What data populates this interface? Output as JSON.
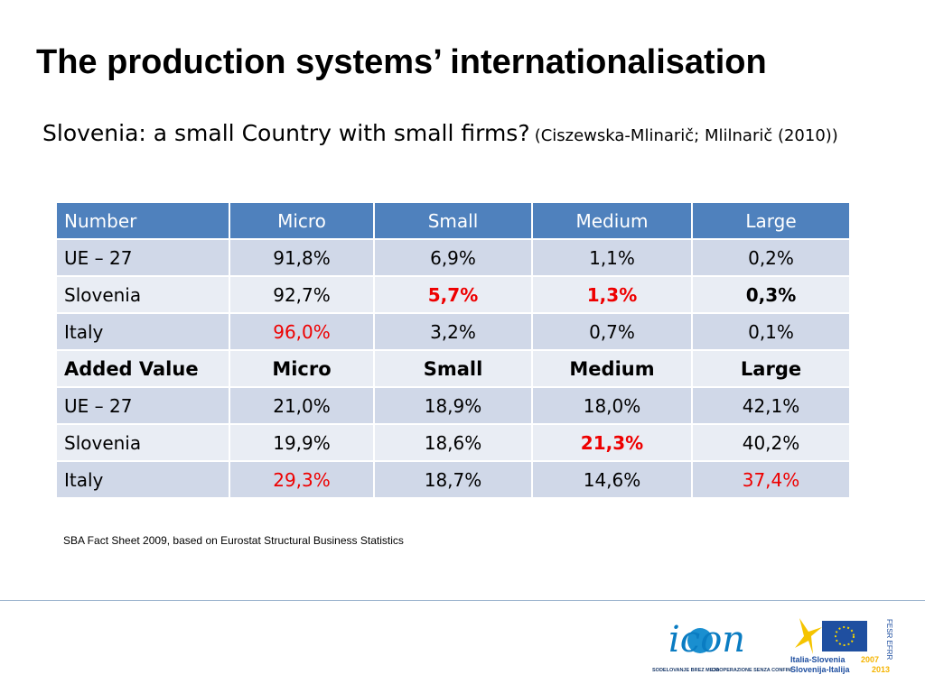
{
  "title": "The production systems’ internationalisation",
  "subtitle": {
    "main": "Slovenia: a small Country with small firms?",
    "citation": "(Ciszewska-Mlinarič; Mlilnarič (2010))"
  },
  "table": {
    "header": [
      "Number",
      "Micro",
      "Small",
      "Medium",
      "Large"
    ],
    "rows": [
      {
        "kind": "data",
        "cells": [
          {
            "text": "UE – 27"
          },
          {
            "text": "91,8%"
          },
          {
            "text": "6,9%"
          },
          {
            "text": "1,1%"
          },
          {
            "text": "0,2%"
          }
        ]
      },
      {
        "kind": "data",
        "cells": [
          {
            "text": "Slovenia"
          },
          {
            "text": "92,7%"
          },
          {
            "text": "5,7%",
            "style": "red-bold"
          },
          {
            "text": "1,3%",
            "style": "red-bold"
          },
          {
            "text": "0,3%",
            "style": "bold"
          }
        ]
      },
      {
        "kind": "data",
        "cells": [
          {
            "text": "Italy"
          },
          {
            "text": "96,0%",
            "style": "red"
          },
          {
            "text": "3,2%"
          },
          {
            "text": "0,7%"
          },
          {
            "text": "0,1%"
          }
        ]
      },
      {
        "kind": "subheader",
        "cells": [
          {
            "text": "Added Value"
          },
          {
            "text": "Micro"
          },
          {
            "text": "Small"
          },
          {
            "text": "Medium"
          },
          {
            "text": "Large"
          }
        ]
      },
      {
        "kind": "data",
        "cells": [
          {
            "text": "UE – 27"
          },
          {
            "text": "21,0%"
          },
          {
            "text": "18,9%"
          },
          {
            "text": "18,0%"
          },
          {
            "text": "42,1%"
          }
        ]
      },
      {
        "kind": "data",
        "cells": [
          {
            "text": "Slovenia"
          },
          {
            "text": "19,9%"
          },
          {
            "text": "18,6%"
          },
          {
            "text": "21,3%",
            "style": "red-bold"
          },
          {
            "text": "40,2%"
          }
        ]
      },
      {
        "kind": "data",
        "cells": [
          {
            "text": "Italy"
          },
          {
            "text": "29,3%",
            "style": "red"
          },
          {
            "text": "18,7%"
          },
          {
            "text": "14,6%"
          },
          {
            "text": "37,4%",
            "style": "red"
          }
        ]
      }
    ]
  },
  "footnote": "SBA  Fact Sheet 2009, based on Eurostat Structural Business Statistics",
  "logos": {
    "icon": {
      "name": "icon",
      "line1": "SODELOVANJE BREZ MEJA",
      "line2": "COOPERAZIONE SENZA CONFINI"
    },
    "program": {
      "line1": "Italia-Slovenia",
      "year1": "2007",
      "line2": "Slovenija-Italija",
      "year2": "2013",
      "side": "FESR EFRR"
    }
  }
}
